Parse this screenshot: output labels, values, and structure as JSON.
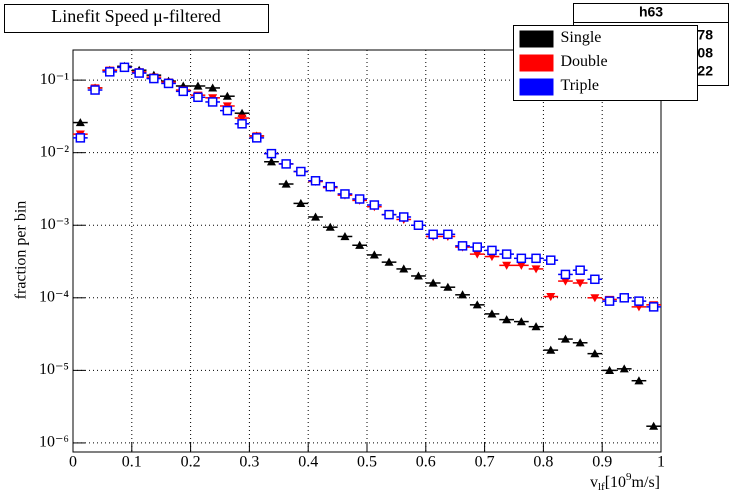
{
  "chart_data": {
    "type": "scatter",
    "title": "Linefit Speed μ-filtered",
    "xlabel": [
      "v",
      "lf",
      "[10",
      "9",
      "m/s]"
    ],
    "ylabel": "fraction per bin",
    "log_y": true,
    "grid": true,
    "legend": "top-right",
    "stats": {
      "title": "h63",
      "values": [
        "78",
        "08",
        "22"
      ]
    },
    "xlim": [
      0,
      1
    ],
    "xticks": [
      0,
      0.1,
      0.2,
      0.3,
      0.4,
      0.5,
      0.6,
      0.7,
      0.8,
      0.9,
      1
    ],
    "ylim": [
      7.5e-07,
      0.26
    ],
    "yticks": [
      {
        "value": 0.1,
        "label": "10⁻¹"
      },
      {
        "value": 0.01,
        "label": "10⁻²"
      },
      {
        "value": 0.001,
        "label": "10⁻³"
      },
      {
        "value": 0.0001,
        "label": "10⁻⁴"
      },
      {
        "value": 1e-05,
        "label": "10⁻⁵"
      },
      {
        "value": 1e-06,
        "label": "10⁻⁶"
      }
    ],
    "x": [
      0.0125,
      0.0375,
      0.0625,
      0.0875,
      0.1125,
      0.1375,
      0.1625,
      0.1875,
      0.2125,
      0.2375,
      0.2625,
      0.2875,
      0.3125,
      0.3375,
      0.3625,
      0.3875,
      0.4125,
      0.4375,
      0.4625,
      0.4875,
      0.5125,
      0.5375,
      0.5625,
      0.5875,
      0.6125,
      0.6375,
      0.6625,
      0.6875,
      0.7125,
      0.7375,
      0.7625,
      0.7875,
      0.8125,
      0.8375,
      0.8625,
      0.8875,
      0.9125,
      0.9375,
      0.9625,
      0.9875
    ],
    "series": [
      {
        "name": "Single",
        "color": "#000000",
        "marker": "triangle-up",
        "values": [
          0.026,
          0.078,
          0.137,
          0.155,
          0.137,
          0.117,
          0.097,
          0.083,
          0.083,
          0.078,
          0.06,
          0.035,
          0.017,
          0.0075,
          0.0037,
          0.002,
          0.0013,
          0.00094,
          0.0007,
          0.00053,
          0.00039,
          0.00031,
          0.00025,
          0.0002,
          0.00016,
          0.00014,
          0.00011,
          8e-05,
          6e-05,
          5e-05,
          4.7e-05,
          4e-05,
          1.9e-05,
          2.7e-05,
          2.4e-05,
          1.7e-05,
          1e-05,
          1.05e-05,
          7.2e-06,
          1.7e-06
        ]
      },
      {
        "name": "Double",
        "color": "#ff0000",
        "marker": "triangle-down",
        "values": [
          0.018,
          0.078,
          0.137,
          0.15,
          0.13,
          0.11,
          0.094,
          0.073,
          0.062,
          0.057,
          0.044,
          0.03,
          0.017,
          0.0097,
          0.007,
          0.0055,
          0.004,
          0.0033,
          0.0026,
          0.0022,
          0.0018,
          0.0014,
          0.0012,
          0.001,
          0.0007,
          0.0007,
          0.0005,
          0.0004,
          0.00037,
          0.00028,
          0.00028,
          0.00025,
          0.000104,
          0.00017,
          0.00016,
          0.0001,
          9.5e-05,
          0.0001,
          7.5e-05,
          8e-05
        ]
      },
      {
        "name": "Triple",
        "color": "#0000ff",
        "marker": "square-open",
        "values": [
          0.016,
          0.073,
          0.13,
          0.15,
          0.125,
          0.105,
          0.09,
          0.07,
          0.058,
          0.05,
          0.038,
          0.025,
          0.016,
          0.0097,
          0.007,
          0.0055,
          0.0041,
          0.0034,
          0.0027,
          0.0023,
          0.0019,
          0.0014,
          0.0013,
          0.001,
          0.00075,
          0.00075,
          0.00052,
          0.0005,
          0.00045,
          0.0004,
          0.00035,
          0.00035,
          0.00033,
          0.00021,
          0.00024,
          0.00018,
          9e-05,
          0.0001,
          9e-05,
          7.5e-05
        ]
      }
    ]
  }
}
